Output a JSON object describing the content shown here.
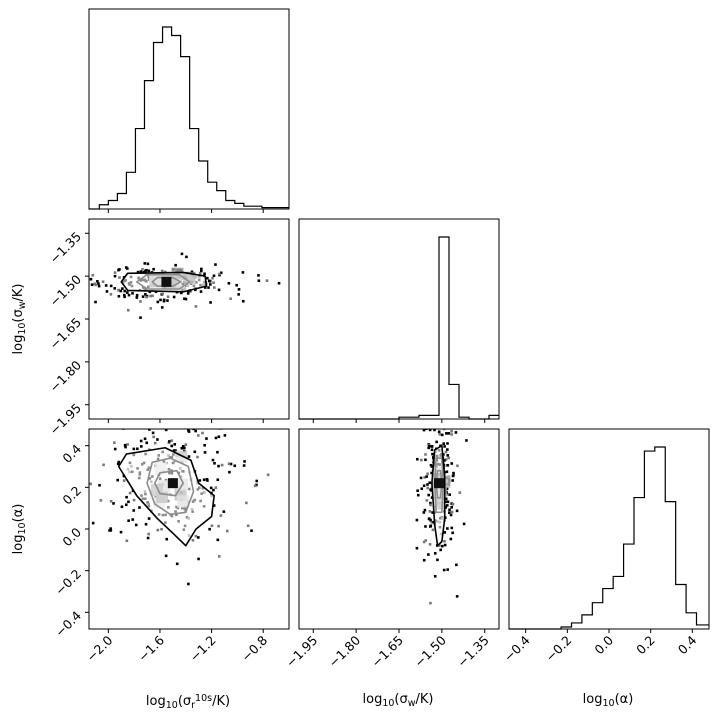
{
  "chart_data": {
    "type": "corner",
    "parameters": [
      {
        "id": "sr",
        "label_base": "log",
        "label_sub": "10",
        "label_arg_prefix": "(σ",
        "label_arg_sub": "r",
        "label_arg_sup": "10s",
        "label_arg_suffix": "/K)",
        "range": [
          -2.15,
          -0.6
        ],
        "ticks": [
          -2.0,
          -1.6,
          -1.2,
          -0.8
        ],
        "tick_labels": [
          "−2.0",
          "−1.6",
          "−1.2",
          "−0.8"
        ]
      },
      {
        "id": "sw",
        "label_base": "log",
        "label_sub": "10",
        "label_arg_prefix": "(σ",
        "label_arg_sub": "w",
        "label_arg_sup": "",
        "label_arg_suffix": "/K)",
        "range": [
          -2.0,
          -1.3
        ],
        "ticks": [
          -1.95,
          -1.8,
          -1.65,
          -1.5,
          -1.35
        ],
        "tick_labels": [
          "−1.95",
          "−1.80",
          "−1.65",
          "−1.50",
          "−1.35"
        ]
      },
      {
        "id": "alpha",
        "label_base": "log",
        "label_sub": "10",
        "label_arg_prefix": "(α",
        "label_arg_sub": "",
        "label_arg_sup": "",
        "label_arg_suffix": ")",
        "range": [
          -0.48,
          0.48
        ],
        "ticks": [
          -0.4,
          -0.2,
          0.0,
          0.2,
          0.4
        ],
        "tick_labels": [
          "−0.4",
          "−0.2",
          "0.0",
          "0.2",
          "0.4"
        ]
      }
    ],
    "histograms": [
      {
        "param": "sr",
        "bin_edges": [
          -2.15,
          -2.07,
          -2.0,
          -1.93,
          -1.86,
          -1.79,
          -1.72,
          -1.65,
          -1.58,
          -1.51,
          -1.44,
          -1.37,
          -1.3,
          -1.23,
          -1.16,
          -1.09,
          -1.02,
          -0.95,
          -0.88,
          -0.81,
          -0.74,
          -0.6
        ],
        "counts": [
          0,
          3,
          6,
          11,
          26,
          57,
          91,
          118,
          129,
          123,
          108,
          57,
          34,
          19,
          13,
          6,
          4,
          2,
          2,
          1,
          1
        ]
      },
      {
        "param": "sw",
        "bin_edges": [
          -2.0,
          -1.965,
          -1.93,
          -1.895,
          -1.86,
          -1.825,
          -1.79,
          -1.755,
          -1.72,
          -1.685,
          -1.65,
          -1.615,
          -1.58,
          -1.545,
          -1.51,
          -1.475,
          -1.44,
          -1.405,
          -1.37,
          -1.335,
          -1.3
        ],
        "counts": [
          0,
          0,
          0,
          0,
          0,
          0,
          0,
          0,
          0,
          0,
          1,
          1,
          2,
          2,
          100,
          19,
          1,
          0,
          0,
          2
        ]
      },
      {
        "param": "alpha",
        "bin_edges": [
          -0.48,
          -0.43,
          -0.38,
          -0.33,
          -0.28,
          -0.23,
          -0.18,
          -0.13,
          -0.08,
          -0.03,
          0.02,
          0.07,
          0.12,
          0.17,
          0.22,
          0.27,
          0.32,
          0.37,
          0.42,
          0.48
        ],
        "counts": [
          0,
          0,
          0,
          0,
          0,
          1,
          3,
          7,
          13,
          20,
          26,
          42,
          65,
          88,
          90,
          63,
          22,
          8,
          2
        ]
      }
    ],
    "pairs": [
      {
        "x": "sr",
        "y": "sw",
        "peak": [
          -1.55,
          -1.52
        ],
        "contours": [
          [
            [
              -1.62,
              -1.505
            ],
            [
              -1.5,
              -1.505
            ],
            [
              -1.44,
              -1.52
            ],
            [
              -1.5,
              -1.535
            ],
            [
              -1.62,
              -1.535
            ],
            [
              -1.66,
              -1.52
            ]
          ],
          [
            [
              -1.7,
              -1.495
            ],
            [
              -1.45,
              -1.495
            ],
            [
              -1.37,
              -1.52
            ],
            [
              -1.45,
              -1.545
            ],
            [
              -1.7,
              -1.545
            ],
            [
              -1.78,
              -1.52
            ]
          ],
          [
            [
              -1.85,
              -1.49
            ],
            [
              -1.42,
              -1.487
            ],
            [
              -1.25,
              -1.5
            ],
            [
              -1.24,
              -1.535
            ],
            [
              -1.42,
              -1.555
            ],
            [
              -1.85,
              -1.55
            ],
            [
              -1.9,
              -1.52
            ]
          ]
        ]
      },
      {
        "x": "sr",
        "y": "alpha",
        "peak": [
          -1.5,
          0.22
        ],
        "contours": [
          [
            [
              -1.6,
              0.27
            ],
            [
              -1.47,
              0.28
            ],
            [
              -1.42,
              0.22
            ],
            [
              -1.48,
              0.16
            ],
            [
              -1.6,
              0.17
            ],
            [
              -1.64,
              0.22
            ]
          ],
          [
            [
              -1.66,
              0.32
            ],
            [
              -1.52,
              0.34
            ],
            [
              -1.38,
              0.3
            ],
            [
              -1.34,
              0.18
            ],
            [
              -1.4,
              0.08
            ],
            [
              -1.52,
              0.07
            ],
            [
              -1.64,
              0.12
            ],
            [
              -1.7,
              0.22
            ]
          ],
          [
            [
              -1.86,
              0.36
            ],
            [
              -1.56,
              0.39
            ],
            [
              -1.36,
              0.33
            ],
            [
              -1.3,
              0.22
            ],
            [
              -1.18,
              0.16
            ],
            [
              -1.2,
              0.06
            ],
            [
              -1.32,
              0.0
            ],
            [
              -1.4,
              -0.08
            ],
            [
              -1.5,
              -0.02
            ],
            [
              -1.62,
              0.05
            ],
            [
              -1.78,
              0.16
            ],
            [
              -1.92,
              0.3
            ]
          ]
        ]
      },
      {
        "x": "sw",
        "y": "alpha",
        "peak": [
          -1.51,
          0.22
        ],
        "contours": [
          [
            [
              -1.515,
              0.28
            ],
            [
              -1.505,
              0.28
            ],
            [
              -1.5,
              0.22
            ],
            [
              -1.505,
              0.15
            ],
            [
              -1.515,
              0.15
            ],
            [
              -1.52,
              0.22
            ]
          ],
          [
            [
              -1.52,
              0.34
            ],
            [
              -1.5,
              0.34
            ],
            [
              -1.495,
              0.22
            ],
            [
              -1.5,
              0.08
            ],
            [
              -1.52,
              0.08
            ],
            [
              -1.525,
              0.22
            ]
          ],
          [
            [
              -1.525,
              0.38
            ],
            [
              -1.5,
              0.4
            ],
            [
              -1.49,
              0.25
            ],
            [
              -1.49,
              0.05
            ],
            [
              -1.5,
              -0.06
            ],
            [
              -1.515,
              -0.08
            ],
            [
              -1.525,
              0.02
            ],
            [
              -1.535,
              0.22
            ]
          ]
        ]
      }
    ],
    "grid": false,
    "legend": "none"
  },
  "colors": {
    "line": "#000000",
    "background": "#ffffff",
    "density_dark": "#1a1a1a",
    "density_light": "#d9d9d9"
  }
}
